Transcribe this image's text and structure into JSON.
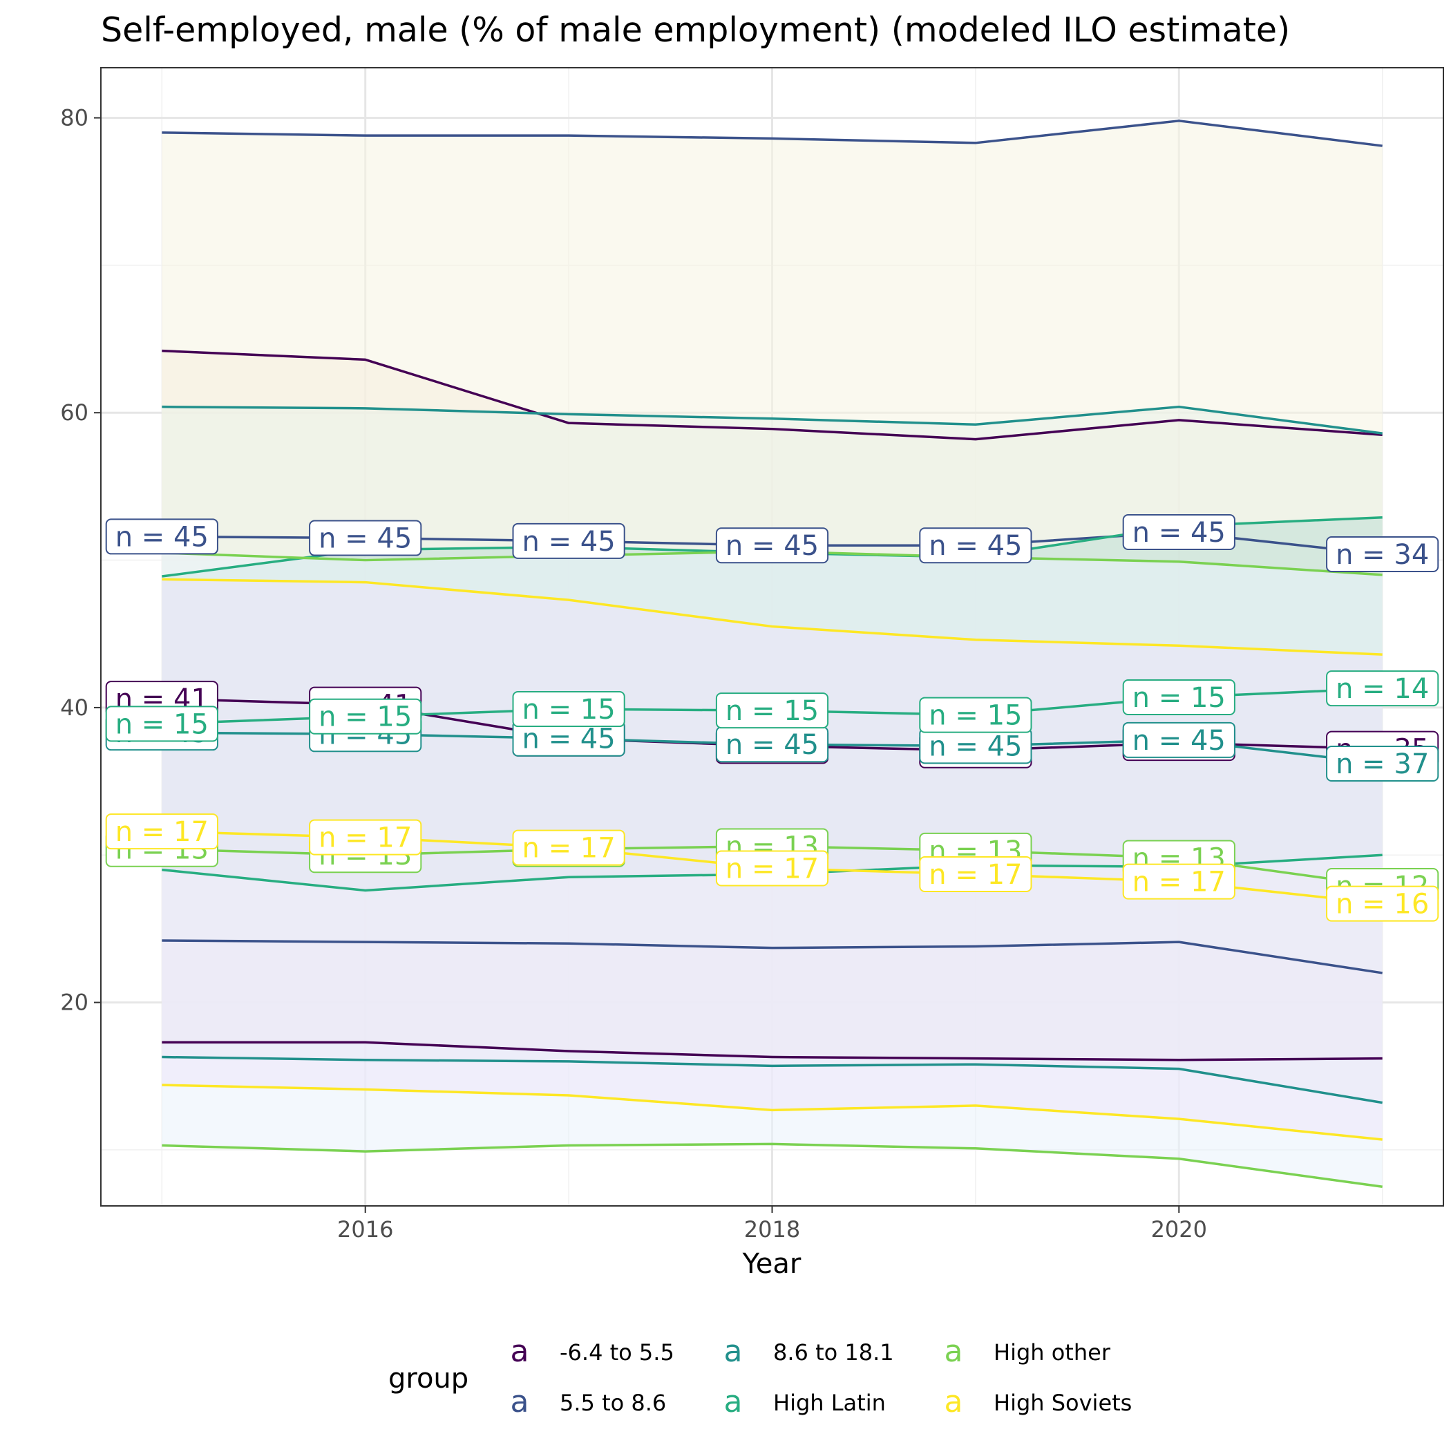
{
  "chart_data": {
    "type": "line",
    "title": "Self-employed, male (% of male employment) (modeled ILO estimate)",
    "xlabel": "Year",
    "ylabel": "",
    "x": [
      2015,
      2016,
      2017,
      2018,
      2019,
      2020,
      2021
    ],
    "xlim": [
      2014.7,
      2021.3
    ],
    "ylim": [
      6.2,
      83.4
    ],
    "x_ticks": [
      "2016",
      "2018",
      "2020"
    ],
    "y_ticks": [
      "20",
      "40",
      "60",
      "80"
    ],
    "grid": true,
    "legend": {
      "title": "group",
      "position": "bottom",
      "glyph": "a",
      "entries": [
        "-6.4 to 5.5",
        "5.5 to 8.6",
        "8.6 to 18.1",
        "High Latin",
        "High other",
        "High Soviets"
      ]
    },
    "series": [
      {
        "name": "-6.4 to 5.5",
        "color": "#440154",
        "fill": "#f6e7da",
        "max": [
          64.2,
          63.6,
          59.3,
          58.9,
          58.2,
          59.5,
          58.5
        ],
        "mean": [
          40.6,
          40.2,
          37.9,
          37.4,
          37.1,
          37.6,
          37.2
        ],
        "min": [
          17.3,
          17.3,
          16.7,
          16.3,
          16.2,
          16.1,
          16.2
        ],
        "n_labels": [
          "n = 41",
          "n = 41",
          "n = 45",
          "n = 45",
          "n = 45",
          "n = 45",
          "n = 35"
        ]
      },
      {
        "name": "5.5 to 8.6",
        "color": "#3b528b",
        "fill": "#f6f4e2",
        "max": [
          79.0,
          78.8,
          78.8,
          78.6,
          78.3,
          79.8,
          78.1
        ],
        "mean": [
          51.6,
          51.5,
          51.3,
          51.0,
          51.0,
          51.9,
          50.4
        ],
        "min": [
          24.2,
          24.1,
          24.0,
          23.7,
          23.8,
          24.1,
          22.0
        ],
        "n_labels": [
          "n = 45",
          "n = 45",
          "n = 45",
          "n = 45",
          "n = 45",
          "n = 45",
          "n = 34"
        ]
      },
      {
        "name": "8.6 to 18.1",
        "color": "#21908c",
        "fill": "#e9f3ea",
        "max": [
          60.4,
          60.3,
          59.9,
          59.6,
          59.2,
          60.4,
          58.6
        ],
        "mean": [
          38.3,
          38.2,
          37.9,
          37.5,
          37.4,
          37.8,
          36.2
        ],
        "min": [
          16.3,
          16.1,
          16.0,
          15.7,
          15.8,
          15.5,
          13.2
        ],
        "n_labels": [
          "n = 45",
          "n = 45",
          "n = 45",
          "n = 45",
          "n = 45",
          "n = 45",
          "n = 37"
        ]
      },
      {
        "name": "High Latin",
        "color": "#27ad81",
        "fill": "#c0dfd5",
        "max": [
          48.9,
          50.7,
          50.9,
          50.5,
          50.2,
          52.3,
          52.9
        ],
        "mean": [
          38.9,
          39.4,
          39.9,
          39.8,
          39.5,
          40.7,
          41.3
        ],
        "min": [
          29.0,
          27.6,
          28.5,
          28.7,
          29.3,
          29.2,
          30.0
        ],
        "n_labels": [
          "n = 15",
          "n = 15",
          "n = 15",
          "n = 15",
          "n = 15",
          "n = 15",
          "n = 14"
        ]
      },
      {
        "name": "High other",
        "color": "#7ad151",
        "fill": "#eaf2fb",
        "max": [
          50.5,
          50.0,
          50.3,
          50.6,
          50.2,
          49.9,
          49.0
        ],
        "mean": [
          30.4,
          30.0,
          30.4,
          30.6,
          30.3,
          29.8,
          27.9
        ],
        "min": [
          10.3,
          9.9,
          10.3,
          10.4,
          10.1,
          9.4,
          7.5
        ],
        "n_labels": [
          "n = 13",
          "n = 13",
          "n = 13",
          "n = 13",
          "n = 13",
          "n = 13",
          "n = 12"
        ]
      },
      {
        "name": "High Soviets",
        "color": "#fde725",
        "fill": "#ede5f9",
        "max": [
          48.7,
          48.5,
          47.3,
          45.5,
          44.6,
          44.2,
          43.6
        ],
        "mean": [
          31.6,
          31.2,
          30.5,
          29.1,
          28.7,
          28.2,
          26.7
        ],
        "min": [
          14.4,
          14.1,
          13.7,
          12.7,
          13.0,
          12.1,
          10.7
        ],
        "n_labels": [
          "n = 17",
          "n = 17",
          "n = 17",
          "n = 17",
          "n = 17",
          "n = 17",
          "n = 16"
        ]
      }
    ]
  }
}
